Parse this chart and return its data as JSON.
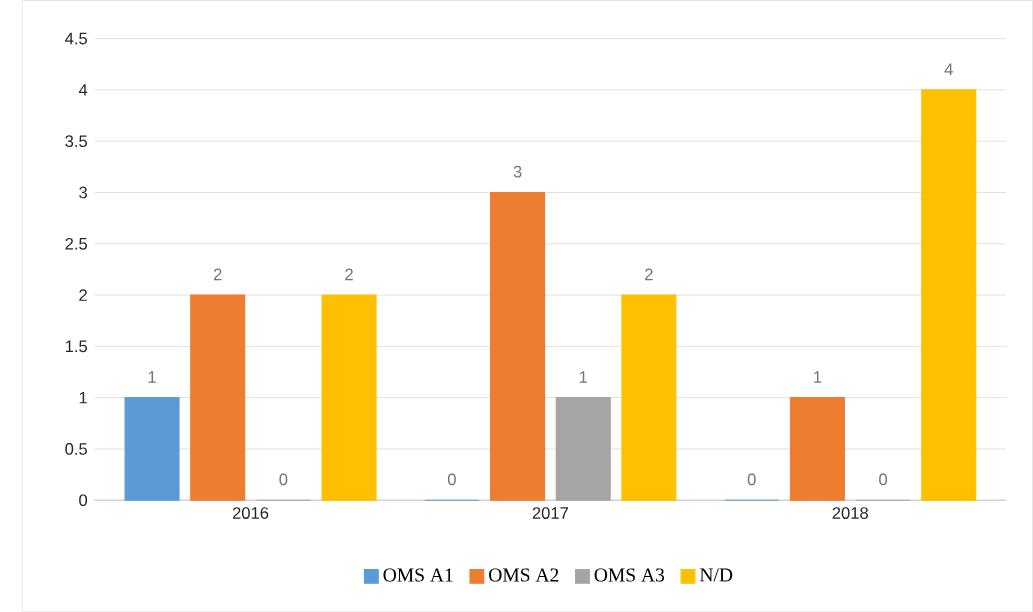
{
  "chart_data": {
    "type": "bar",
    "categories": [
      "2016",
      "2017",
      "2018"
    ],
    "series": [
      {
        "name": "OMS A1",
        "color": "#5b9bd5",
        "values": [
          1,
          0,
          0
        ]
      },
      {
        "name": "OMS A2",
        "color": "#ed7d31",
        "values": [
          2,
          3,
          1
        ]
      },
      {
        "name": "OMS A3",
        "color": "#a5a5a5",
        "values": [
          0,
          1,
          0
        ]
      },
      {
        "name": "N/D",
        "color": "#ffc000",
        "values": [
          2,
          2,
          4
        ]
      }
    ],
    "ylim": [
      0,
      4.5
    ],
    "yticks": [
      0,
      0.5,
      1,
      1.5,
      2,
      2.5,
      3,
      3.5,
      4,
      4.5
    ],
    "grid": "y",
    "legend": "bottom",
    "data_labels": true
  }
}
